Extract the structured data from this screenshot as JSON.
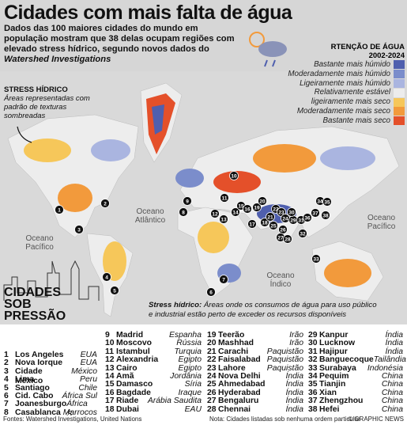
{
  "header": {
    "title": "Cidades com mais falta de água",
    "subtitle": "Dados das 100 maiores cidades do mundo em população mostram que 38 delas ocupam regiões com elevado stress hídrico, segundo novos dados do",
    "subtitle_source": "Watershed Investigations"
  },
  "legend": {
    "title": "RTENÇÃO DE ÁGUA",
    "period": "2002-2024",
    "items": [
      {
        "label": "Bastante mais húmido",
        "color": "#4f5fae"
      },
      {
        "label": "Moderadamente mais húmido",
        "color": "#7b8dcb"
      },
      {
        "label": "Ligeiramente mais húmido",
        "color": "#aab5e0"
      },
      {
        "label": "Relativamente estável",
        "color": "#ececec"
      },
      {
        "label": "ligeiramente mais seco",
        "color": "#f6c75a"
      },
      {
        "label": "Moderadamente mais seco",
        "color": "#f29a3c"
      },
      {
        "label": "Bastante mais seco",
        "color": "#e4502a"
      }
    ]
  },
  "stress": {
    "title": "STRESS HÍDRICO",
    "text": "Áreas representadas com padrão de texturas sombreadas"
  },
  "oceans": [
    "Oceano Atlântico",
    "Oceano Pacífico",
    "Oceano Pacífico",
    "Oceano Índico"
  ],
  "stress_note": {
    "term": "Stress hídrico:",
    "text": "Áreas onde os consumos de água para uso público e industrial estão perto de exceder os recursos disponíveis"
  },
  "cities": {
    "title_lines": [
      "CIDADES",
      "SOB",
      "PRESSÃO"
    ],
    "items": [
      {
        "num": 1,
        "name": "Los Angeles",
        "country": "EUA"
      },
      {
        "num": 2,
        "name": "Nova Iorque",
        "country": "EUA"
      },
      {
        "num": 3,
        "name": "Cidade México",
        "country": "México"
      },
      {
        "num": 4,
        "name": "Lima",
        "country": "Peru"
      },
      {
        "num": 5,
        "name": "Santiago",
        "country": "Chile"
      },
      {
        "num": 6,
        "name": "Cid. Cabo",
        "country": "África Sul"
      },
      {
        "num": 7,
        "name": "Joanesburgo",
        "country": "África S."
      },
      {
        "num": 8,
        "name": "Casablanca",
        "country": "Marrocos"
      },
      {
        "num": 9,
        "name": "Madrid",
        "country": "Espanha"
      },
      {
        "num": 10,
        "name": "Moscovo",
        "country": "Rússia"
      },
      {
        "num": 11,
        "name": "Istambul",
        "country": "Turquia"
      },
      {
        "num": 12,
        "name": "Alexandria",
        "country": "Egipto"
      },
      {
        "num": 13,
        "name": "Cairo",
        "country": "Egipto"
      },
      {
        "num": 14,
        "name": "Amã",
        "country": "Jordânia"
      },
      {
        "num": 15,
        "name": "Damasco",
        "country": "Síria"
      },
      {
        "num": 16,
        "name": "Bagdade",
        "country": "Iraque"
      },
      {
        "num": 17,
        "name": "Riade",
        "country": "Arábia Saudita"
      },
      {
        "num": 18,
        "name": "Dubai",
        "country": "EAU"
      },
      {
        "num": 19,
        "name": "Teerão",
        "country": "Irão"
      },
      {
        "num": 20,
        "name": "Mashhad",
        "country": "Irão"
      },
      {
        "num": 21,
        "name": "Carachi",
        "country": "Paquistão"
      },
      {
        "num": 22,
        "name": "Faisalabad",
        "country": "Paquistão"
      },
      {
        "num": 23,
        "name": "Lahore",
        "country": "Paquistão"
      },
      {
        "num": 24,
        "name": "Nova Delhi",
        "country": "Índia"
      },
      {
        "num": 25,
        "name": "Ahmedabad",
        "country": "Índia"
      },
      {
        "num": 26,
        "name": "Hyderabad",
        "country": "Índia"
      },
      {
        "num": 27,
        "name": "Bengaluru",
        "country": "Índia"
      },
      {
        "num": 28,
        "name": "Chennai",
        "country": "Índia"
      },
      {
        "num": 29,
        "name": "Kanpur",
        "country": "Índia"
      },
      {
        "num": 30,
        "name": "Lucknow",
        "country": "Índia"
      },
      {
        "num": 31,
        "name": "Hajipur",
        "country": "Índia"
      },
      {
        "num": 32,
        "name": "Banguecoque",
        "country": "Tailândia"
      },
      {
        "num": 33,
        "name": "Surabaya",
        "country": "Indonésia"
      },
      {
        "num": 34,
        "name": "Pequim",
        "country": "China"
      },
      {
        "num": 35,
        "name": "Tianjin",
        "country": "China"
      },
      {
        "num": 36,
        "name": "Xian",
        "country": "China"
      },
      {
        "num": 37,
        "name": "Zhengzhou",
        "country": "China"
      },
      {
        "num": 38,
        "name": "Hefei",
        "country": "China"
      }
    ]
  },
  "footer": {
    "sources": "Fontes: Watershed Investigations, United Nations",
    "note": "Nota: Cidades listadas sob nenhuma ordem particular",
    "credit": "© GRAPHIC NEWS"
  }
}
